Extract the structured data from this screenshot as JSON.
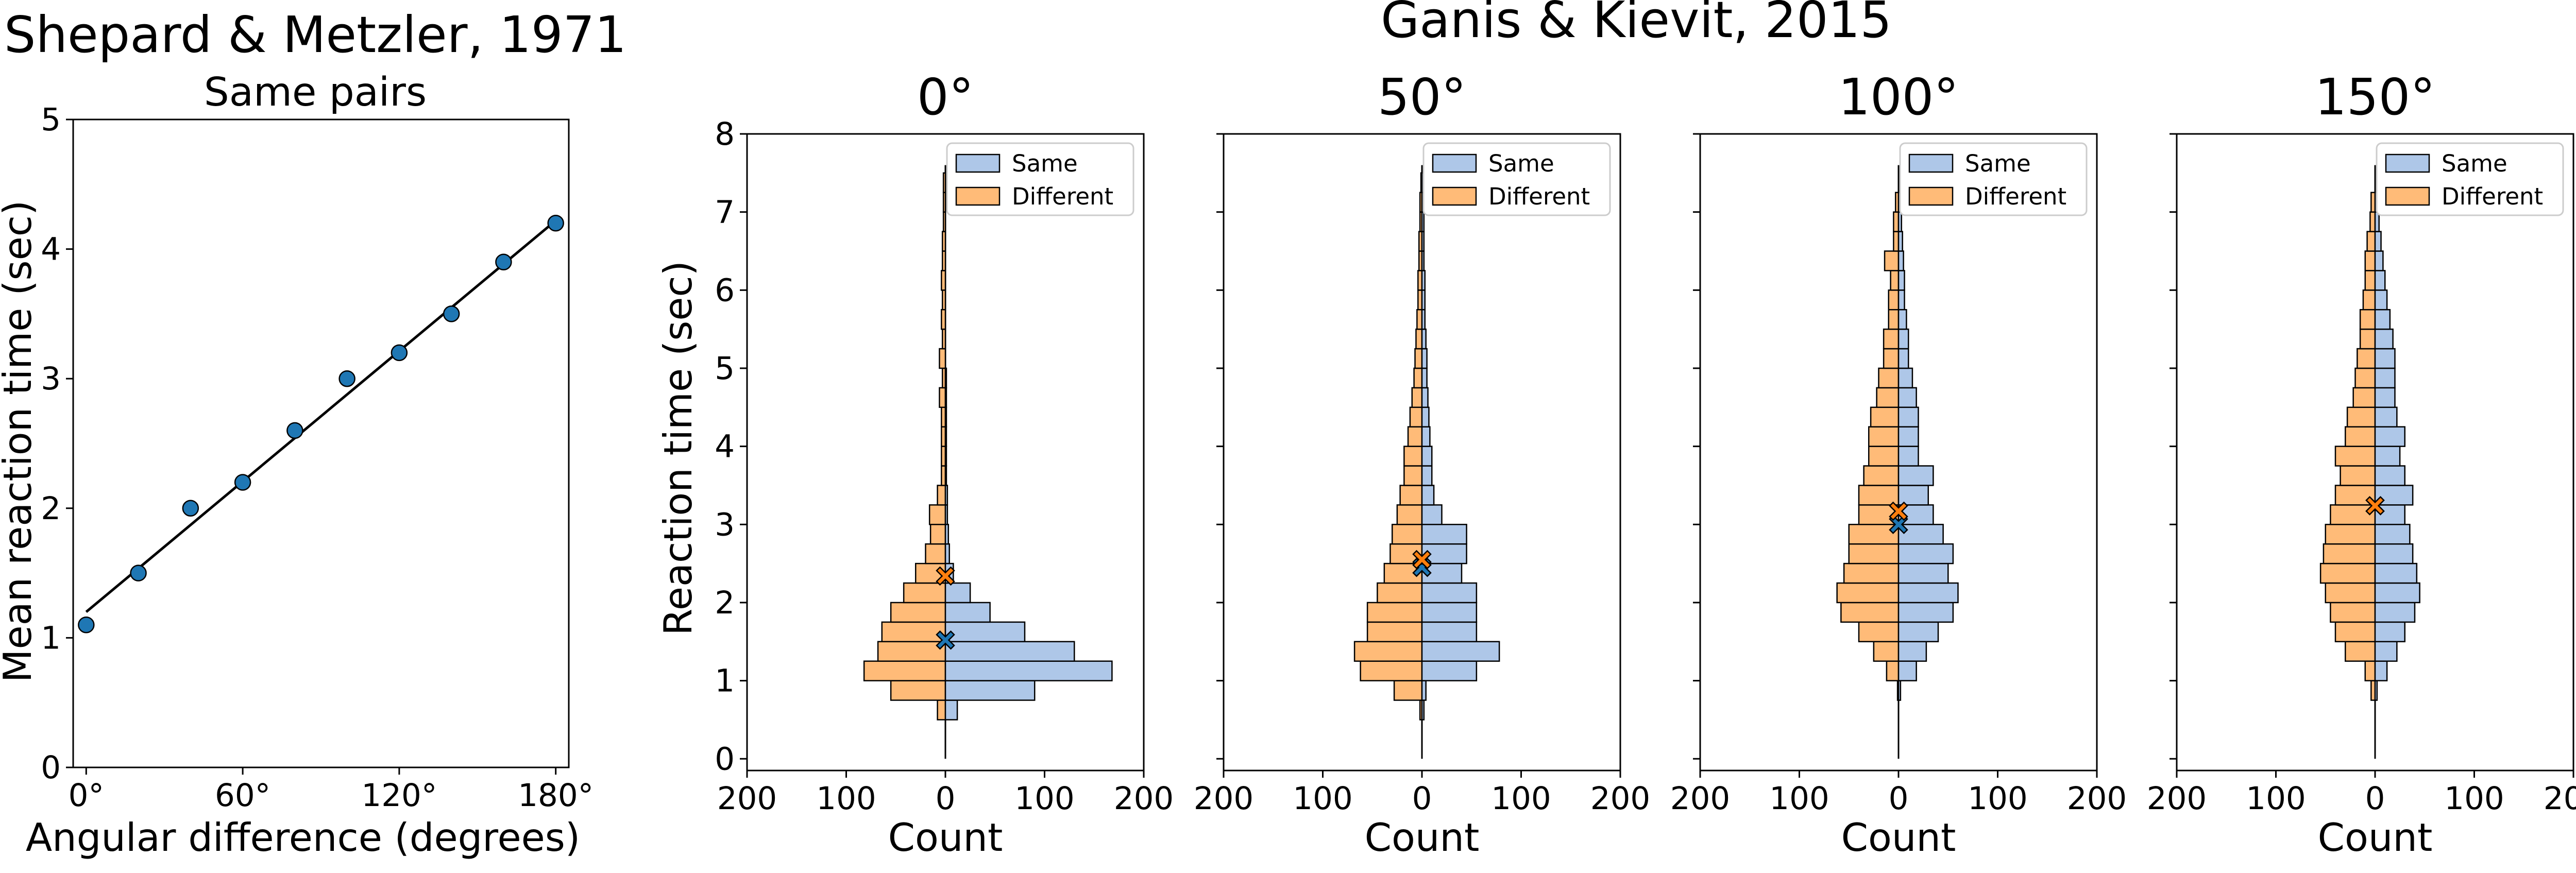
{
  "colors": {
    "same": "#aec7e8",
    "different": "#ffbb78",
    "marker_same": "#1f77b4",
    "marker_different": "#ff7f0e",
    "point": "#1f77b4"
  },
  "chart_data": [
    {
      "type": "scatter",
      "title": "Shepard & Metzler, 1971",
      "subtitle": "Same pairs",
      "xlabel": "Angular difference (degrees)",
      "ylabel": "Mean reaction time (sec)",
      "xlim": [
        -5,
        185
      ],
      "ylim": [
        0,
        5
      ],
      "xticks": [
        0,
        60,
        120,
        180
      ],
      "xtick_labels": [
        "0°",
        "60°",
        "120°",
        "180°"
      ],
      "yticks": [
        0,
        1,
        2,
        3,
        4,
        5
      ],
      "x": [
        0,
        20,
        40,
        60,
        80,
        100,
        120,
        140,
        160,
        180
      ],
      "y": [
        1.1,
        1.5,
        2.0,
        2.2,
        2.6,
        3.0,
        3.2,
        3.5,
        3.9,
        4.2
      ],
      "fit_line": {
        "x": [
          0,
          180
        ],
        "y": [
          1.2,
          4.22
        ]
      }
    },
    {
      "type": "bar",
      "orientation": "horizontal-mirrored",
      "suptitle": "Ganis & Kievit, 2015",
      "xlabel": "Count",
      "ylabel": "Reaction time (sec)",
      "xlim": [
        -200,
        200
      ],
      "xticks": [
        -200,
        -100,
        0,
        100,
        200
      ],
      "xtick_labels": [
        "200",
        "100",
        "0",
        "100",
        "200"
      ],
      "ylim": [
        -0.15,
        8.0
      ],
      "yticks": [
        0,
        1,
        2,
        3,
        4,
        5,
        6,
        7,
        8
      ],
      "legend": {
        "position": "top-right",
        "entries": [
          "Same",
          "Different"
        ]
      },
      "bin_width": 0.25,
      "panels": [
        {
          "title": "0°",
          "bin_start": 0.5,
          "same": [
            12,
            90,
            168,
            130,
            80,
            45,
            25,
            8,
            4,
            3,
            2,
            2,
            1,
            1,
            1,
            1,
            1,
            1,
            0,
            0,
            0,
            0,
            0,
            0,
            0,
            0,
            0,
            0
          ],
          "different": [
            8,
            55,
            82,
            68,
            64,
            55,
            42,
            30,
            20,
            15,
            16,
            8,
            4,
            4,
            4,
            4,
            6,
            3,
            6,
            3,
            4,
            3,
            4,
            3,
            3,
            2,
            2,
            2
          ],
          "mean_same": 1.52,
          "mean_different": 2.34
        },
        {
          "title": "50°",
          "bin_start": 0.5,
          "same": [
            2,
            4,
            55,
            78,
            55,
            55,
            55,
            40,
            45,
            45,
            20,
            12,
            10,
            10,
            8,
            7,
            6,
            5,
            5,
            4,
            3,
            3,
            3,
            2,
            2,
            2,
            2,
            2
          ],
          "different": [
            2,
            28,
            62,
            68,
            55,
            55,
            45,
            38,
            32,
            30,
            25,
            22,
            18,
            18,
            14,
            12,
            10,
            8,
            7,
            6,
            5,
            4,
            4,
            3,
            3,
            2,
            2,
            1
          ],
          "mean_same": 2.45,
          "mean_different": 2.55
        },
        {
          "title": "100°",
          "bin_start": 0.75,
          "same": [
            2,
            18,
            28,
            40,
            55,
            60,
            50,
            55,
            45,
            35,
            30,
            35,
            20,
            20,
            20,
            18,
            14,
            10,
            10,
            8,
            6,
            6,
            5,
            4,
            3,
            3
          ],
          "different": [
            1,
            12,
            25,
            40,
            58,
            62,
            55,
            50,
            50,
            40,
            40,
            35,
            30,
            30,
            28,
            22,
            20,
            15,
            15,
            10,
            10,
            8,
            14,
            5,
            5,
            3
          ],
          "mean_same": 3.0,
          "mean_different": 3.17
        },
        {
          "title": "150°",
          "bin_start": 0.75,
          "same": [
            2,
            12,
            22,
            30,
            40,
            45,
            42,
            38,
            35,
            30,
            38,
            30,
            25,
            30,
            22,
            20,
            20,
            20,
            18,
            15,
            12,
            10,
            8,
            6,
            4,
            3
          ],
          "different": [
            4,
            10,
            30,
            40,
            45,
            50,
            55,
            52,
            50,
            45,
            40,
            35,
            40,
            30,
            28,
            22,
            20,
            18,
            15,
            15,
            12,
            10,
            10,
            8,
            5,
            4
          ],
          "mean_same": 3.24,
          "mean_different": 3.24
        }
      ]
    }
  ]
}
